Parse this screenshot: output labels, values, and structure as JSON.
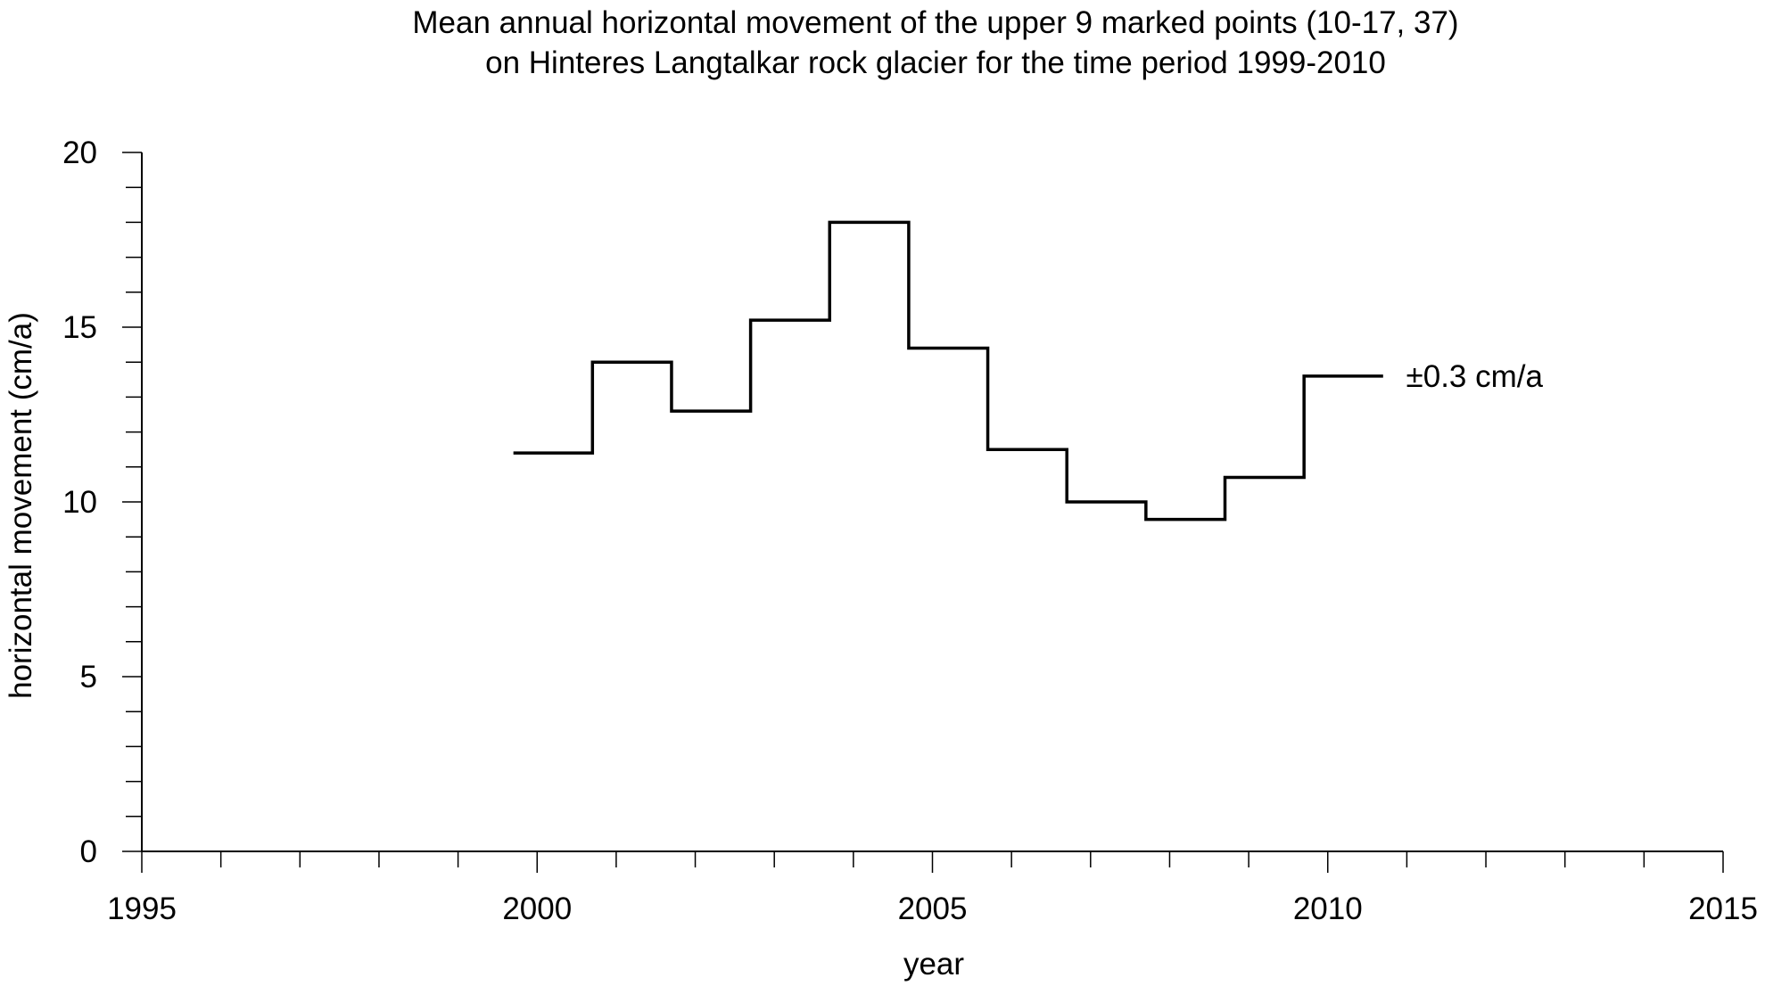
{
  "chart_data": {
    "type": "line",
    "step": "horizontal",
    "title_lines": [
      "Mean annual horizontal movement of the upper 9 marked points (10-17, 37)",
      "on Hinteres Langtalkar rock glacier for the time period 1999-2010"
    ],
    "xlabel": "year",
    "ylabel": "horizontal movement (cm/a)",
    "xlim": [
      1995,
      2015
    ],
    "ylim": [
      0,
      20
    ],
    "x_ticks": [
      1995,
      2000,
      2005,
      2010,
      2015
    ],
    "y_ticks": [
      0,
      5,
      10,
      15,
      20
    ],
    "x_minor_step": 1,
    "y_minor_step": 1,
    "grid": false,
    "series": [
      {
        "segments": [
          {
            "x_start": 1999.7,
            "x_end": 2000.7,
            "y": 11.4
          },
          {
            "x_start": 2000.7,
            "x_end": 2001.7,
            "y": 14.0
          },
          {
            "x_start": 2001.7,
            "x_end": 2002.7,
            "y": 12.6
          },
          {
            "x_start": 2002.7,
            "x_end": 2003.7,
            "y": 15.2
          },
          {
            "x_start": 2003.7,
            "x_end": 2004.7,
            "y": 18.0
          },
          {
            "x_start": 2004.7,
            "x_end": 2005.7,
            "y": 14.4
          },
          {
            "x_start": 2005.7,
            "x_end": 2006.7,
            "y": 11.5
          },
          {
            "x_start": 2006.7,
            "x_end": 2007.7,
            "y": 10.0
          },
          {
            "x_start": 2007.7,
            "x_end": 2008.7,
            "y": 9.5
          },
          {
            "x_start": 2008.7,
            "x_end": 2009.7,
            "y": 10.7
          },
          {
            "x_start": 2009.7,
            "x_end": 2010.7,
            "y": 13.6
          }
        ]
      }
    ],
    "annotations": [
      {
        "text": "±0.3 cm/a",
        "x": 2010.9,
        "y": 13.6
      }
    ]
  }
}
